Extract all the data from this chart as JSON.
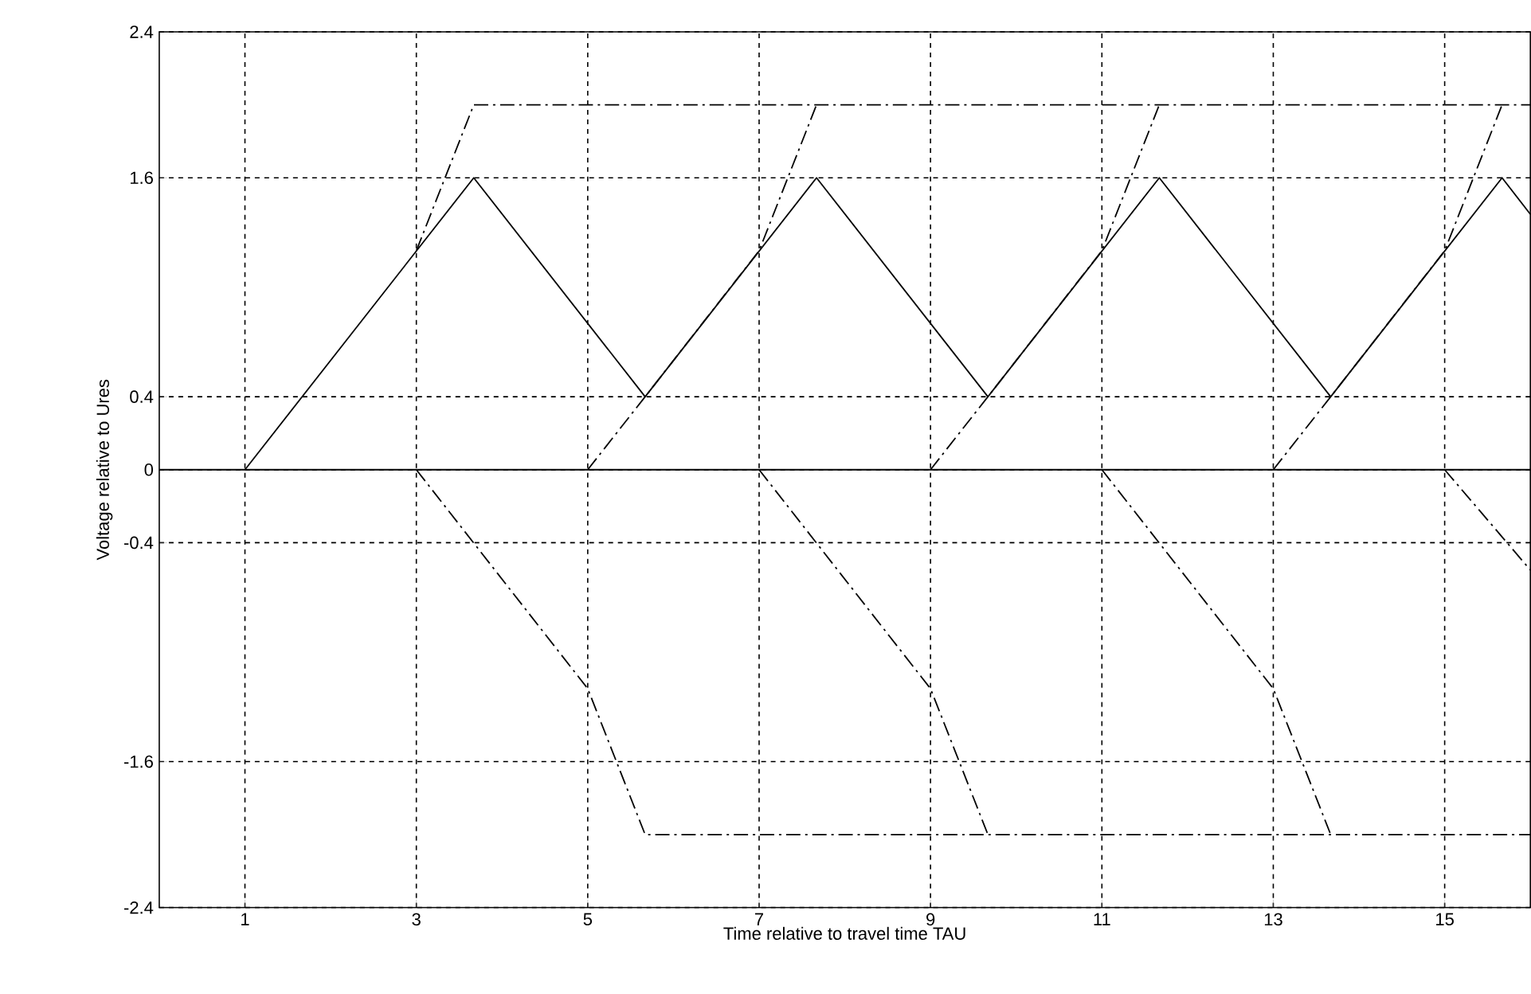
{
  "chart_data": {
    "type": "line",
    "xlabel": "Time relative to travel time TAU",
    "ylabel": "Voltage relative to Ures",
    "xlim": [
      0,
      16
    ],
    "ylim": [
      -2.4,
      2.4
    ],
    "xticks": [
      1,
      3,
      5,
      7,
      9,
      11,
      13,
      15
    ],
    "yticks": [
      -2.4,
      -1.6,
      -0.4,
      0,
      0.4,
      1.6,
      2.4
    ],
    "grid": true,
    "ref_lines": [
      {
        "axis": "y",
        "value": 0,
        "color": "#000000",
        "line_style": "solid"
      }
    ],
    "series": [
      {
        "color": "#000000",
        "line_style": "solid",
        "x": [
          1,
          3.67,
          5.67,
          7.67,
          9.67,
          11.67,
          13.67,
          15.67,
          16
        ],
        "values": [
          0,
          1.6,
          0.4,
          1.6,
          0.4,
          1.6,
          0.4,
          1.6,
          1.4
        ]
      },
      {
        "color": "#000000",
        "line_style": "dashed",
        "x": [
          3,
          3.67,
          16
        ],
        "values": [
          1.2,
          2.0,
          2.0
        ]
      },
      {
        "color": "#000000",
        "line_style": "dashed",
        "x": [
          5,
          5.67,
          7,
          7.67,
          8,
          9,
          9.67,
          11,
          11.67,
          12,
          13,
          13.67,
          15,
          15.67
        ],
        "values": [
          0,
          0.4,
          1.2,
          2.0,
          null,
          0,
          0.4,
          1.2,
          2.0,
          null,
          0,
          0.4,
          1.2,
          2.0
        ]
      },
      {
        "color": "#000000",
        "line_style": "dashed",
        "x": [
          3,
          5,
          5.67,
          16
        ],
        "values": [
          0,
          -1.2,
          -2.0,
          -2.0
        ]
      },
      {
        "color": "#000000",
        "line_style": "dashed",
        "x": [
          7,
          9,
          9.67,
          10,
          11,
          13,
          13.67,
          14,
          15,
          16
        ],
        "values": [
          0,
          -1.2,
          -2.0,
          null,
          0,
          -1.2,
          -2.0,
          null,
          0,
          -0.55
        ]
      }
    ]
  }
}
